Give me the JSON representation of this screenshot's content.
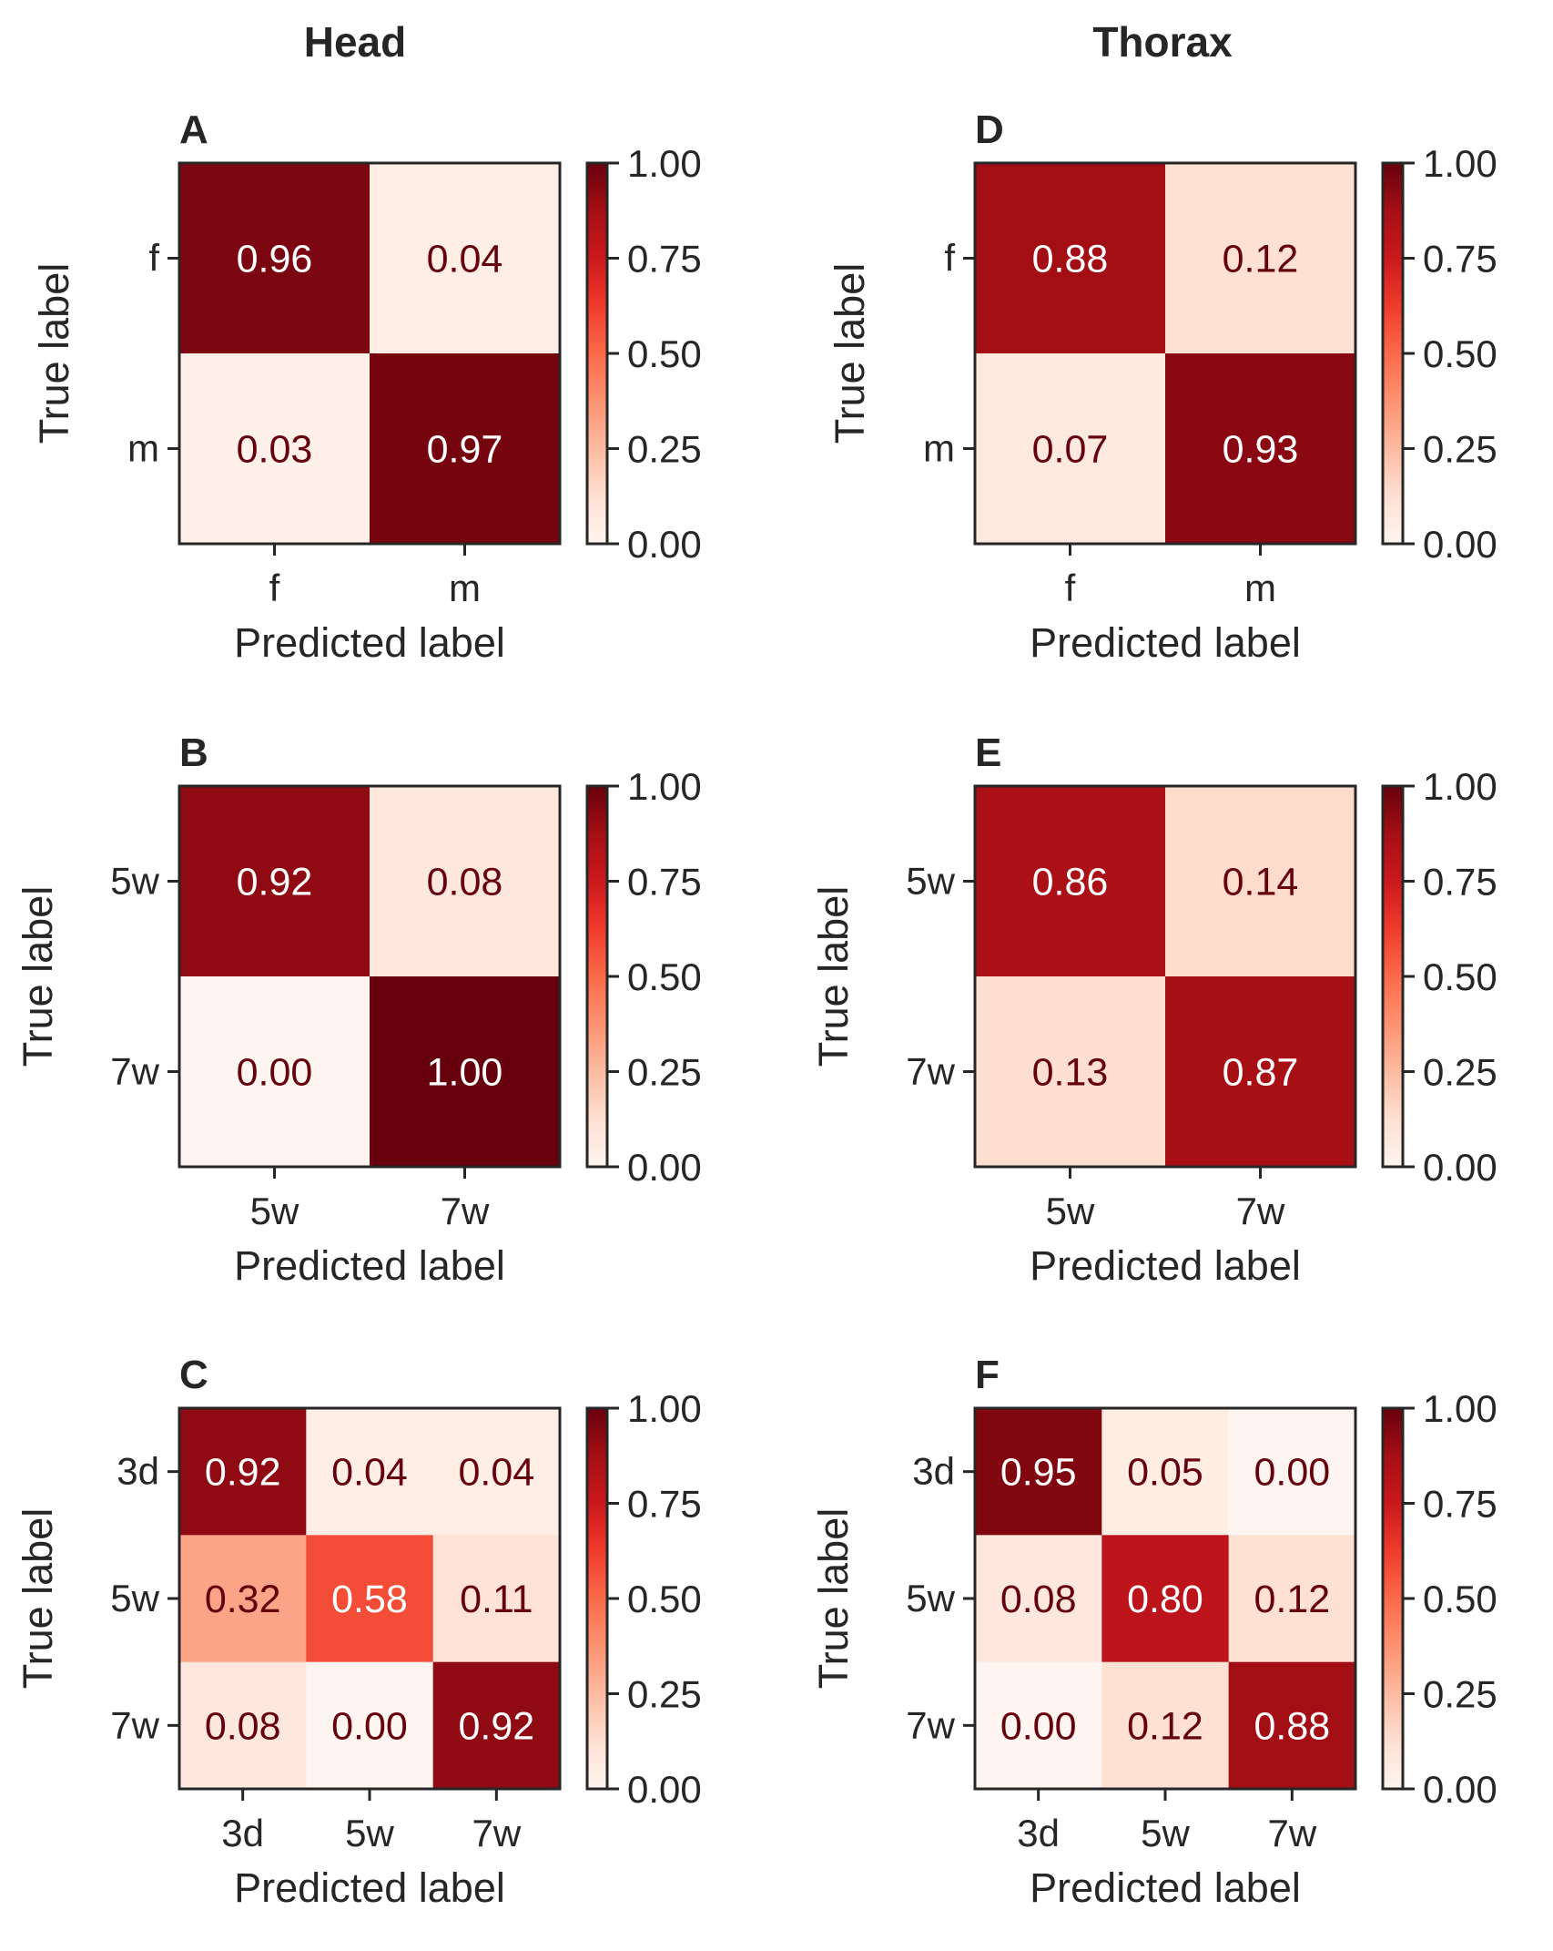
{
  "column_titles": [
    "Head",
    "Thorax"
  ],
  "colorbar_ticks": [
    "0.00",
    "0.25",
    "0.50",
    "0.75",
    "1.00"
  ],
  "colors": {
    "text_dark": "#67000d",
    "text_light": "#ffffff",
    "frame": "#262626",
    "colormap": "Reds"
  },
  "chart_data": [
    {
      "type": "heatmap",
      "panel": "A",
      "column": "Head",
      "classes": [
        "f",
        "m"
      ],
      "values": [
        [
          0.96,
          0.04
        ],
        [
          0.03,
          0.97
        ]
      ],
      "labels": [
        [
          "0.96",
          "0.04"
        ],
        [
          "0.03",
          "0.97"
        ]
      ],
      "xlabel": "Predicted label",
      "ylabel": "True label",
      "colorbar_range": [
        0,
        1
      ]
    },
    {
      "type": "heatmap",
      "panel": "B",
      "column": "Head",
      "classes": [
        "5w",
        "7w"
      ],
      "values": [
        [
          0.92,
          0.08
        ],
        [
          0.0,
          1.0
        ]
      ],
      "labels": [
        [
          "0.92",
          "0.08"
        ],
        [
          "0.00",
          "1.00"
        ]
      ],
      "xlabel": "Predicted label",
      "ylabel": "True label",
      "colorbar_range": [
        0,
        1
      ]
    },
    {
      "type": "heatmap",
      "panel": "C",
      "column": "Head",
      "classes": [
        "3d",
        "5w",
        "7w"
      ],
      "values": [
        [
          0.92,
          0.04,
          0.04
        ],
        [
          0.32,
          0.58,
          0.11
        ],
        [
          0.08,
          0.0,
          0.92
        ]
      ],
      "labels": [
        [
          "0.92",
          "0.04",
          "0.04"
        ],
        [
          "0.32",
          "0.58",
          "0.11"
        ],
        [
          "0.08",
          "0.00",
          "0.92"
        ]
      ],
      "xlabel": "Predicted label",
      "ylabel": "True label",
      "colorbar_range": [
        0,
        1
      ]
    },
    {
      "type": "heatmap",
      "panel": "D",
      "column": "Thorax",
      "classes": [
        "f",
        "m"
      ],
      "values": [
        [
          0.88,
          0.12
        ],
        [
          0.07,
          0.93
        ]
      ],
      "labels": [
        [
          "0.88",
          "0.12"
        ],
        [
          "0.07",
          "0.93"
        ]
      ],
      "xlabel": "Predicted label",
      "ylabel": "True label",
      "colorbar_range": [
        0,
        1
      ]
    },
    {
      "type": "heatmap",
      "panel": "E",
      "column": "Thorax",
      "classes": [
        "5w",
        "7w"
      ],
      "values": [
        [
          0.86,
          0.14
        ],
        [
          0.13,
          0.87
        ]
      ],
      "labels": [
        [
          "0.86",
          "0.14"
        ],
        [
          "0.13",
          "0.87"
        ]
      ],
      "xlabel": "Predicted label",
      "ylabel": "True label",
      "colorbar_range": [
        0,
        1
      ]
    },
    {
      "type": "heatmap",
      "panel": "F",
      "column": "Thorax",
      "classes": [
        "3d",
        "5w",
        "7w"
      ],
      "values": [
        [
          0.95,
          0.05,
          0.0
        ],
        [
          0.08,
          0.8,
          0.12
        ],
        [
          0.0,
          0.12,
          0.88
        ]
      ],
      "labels": [
        [
          "0.95",
          "0.05",
          "0.00"
        ],
        [
          "0.08",
          "0.80",
          "0.12"
        ],
        [
          "0.00",
          "0.12",
          "0.88"
        ]
      ],
      "xlabel": "Predicted label",
      "ylabel": "True label",
      "colorbar_range": [
        0,
        1
      ]
    }
  ]
}
